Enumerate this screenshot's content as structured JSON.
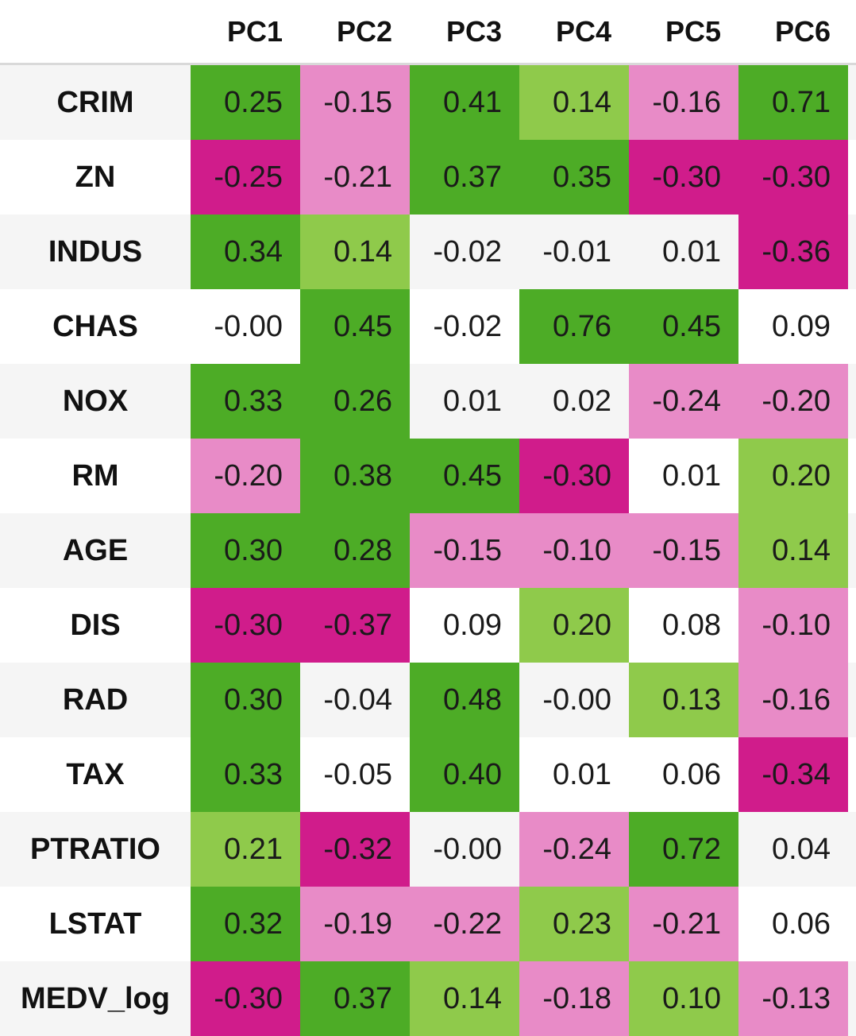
{
  "chart_data": {
    "type": "heatmap",
    "columns": [
      "PC1",
      "PC2",
      "PC3",
      "PC4",
      "PC5",
      "PC6"
    ],
    "rows": [
      "CRIM",
      "ZN",
      "INDUS",
      "CHAS",
      "NOX",
      "RM",
      "AGE",
      "DIS",
      "RAD",
      "TAX",
      "PTRATIO",
      "LSTAT",
      "MEDV_log"
    ],
    "values": [
      [
        "0.25",
        "-0.15",
        "0.41",
        "0.14",
        "-0.16",
        "0.71"
      ],
      [
        "-0.25",
        "-0.21",
        "0.37",
        "0.35",
        "-0.30",
        "-0.30"
      ],
      [
        "0.34",
        "0.14",
        "-0.02",
        "-0.01",
        "0.01",
        "-0.36"
      ],
      [
        "-0.00",
        "0.45",
        "-0.02",
        "0.76",
        "0.45",
        "0.09"
      ],
      [
        "0.33",
        "0.26",
        "0.01",
        "0.02",
        "-0.24",
        "-0.20"
      ],
      [
        "-0.20",
        "0.38",
        "0.45",
        "-0.30",
        "0.01",
        "0.20"
      ],
      [
        "0.30",
        "0.28",
        "-0.15",
        "-0.10",
        "-0.15",
        "0.14"
      ],
      [
        "-0.30",
        "-0.37",
        "0.09",
        "0.20",
        "0.08",
        "-0.10"
      ],
      [
        "0.30",
        "-0.04",
        "0.48",
        "-0.00",
        "0.13",
        "-0.16"
      ],
      [
        "0.33",
        "-0.05",
        "0.40",
        "0.01",
        "0.06",
        "-0.34"
      ],
      [
        "0.21",
        "-0.32",
        "-0.00",
        "-0.24",
        "0.72",
        "0.04"
      ],
      [
        "0.32",
        "-0.19",
        "-0.22",
        "0.23",
        "-0.21",
        "0.06"
      ],
      [
        "-0.30",
        "0.37",
        "0.14",
        "-0.18",
        "0.10",
        "-0.13"
      ]
    ],
    "levels": [
      [
        "dark-green",
        "light-pink",
        "dark-green",
        "light-green",
        "light-pink",
        "dark-green"
      ],
      [
        "dark-magenta",
        "light-pink",
        "dark-green",
        "dark-green",
        "dark-magenta",
        "dark-magenta"
      ],
      [
        "dark-green",
        "light-green",
        "neutral",
        "neutral",
        "neutral",
        "dark-magenta"
      ],
      [
        "neutral",
        "dark-green",
        "neutral",
        "dark-green",
        "dark-green",
        "neutral"
      ],
      [
        "dark-green",
        "dark-green",
        "neutral",
        "neutral",
        "light-pink",
        "light-pink"
      ],
      [
        "light-pink",
        "dark-green",
        "dark-green",
        "dark-magenta",
        "neutral",
        "light-green"
      ],
      [
        "dark-green",
        "dark-green",
        "light-pink",
        "light-pink",
        "light-pink",
        "light-green"
      ],
      [
        "dark-magenta",
        "dark-magenta",
        "neutral",
        "light-green",
        "neutral",
        "light-pink"
      ],
      [
        "dark-green",
        "neutral",
        "dark-green",
        "neutral",
        "light-green",
        "light-pink"
      ],
      [
        "dark-green",
        "neutral",
        "dark-green",
        "neutral",
        "neutral",
        "dark-magenta"
      ],
      [
        "light-green",
        "dark-magenta",
        "neutral",
        "light-pink",
        "dark-green",
        "neutral"
      ],
      [
        "dark-green",
        "light-pink",
        "light-pink",
        "light-green",
        "light-pink",
        "neutral"
      ],
      [
        "dark-magenta",
        "dark-green",
        "light-green",
        "light-pink",
        "light-green",
        "light-pink"
      ]
    ],
    "colors": {
      "dark-green": "#4dac26",
      "light-green": "#8fca4b",
      "light-pink": "#e88bc7",
      "dark-magenta": "#d01c8b",
      "neutral": "transparent"
    },
    "row_stripe_colors": [
      "#f5f5f5",
      "#ffffff"
    ]
  }
}
